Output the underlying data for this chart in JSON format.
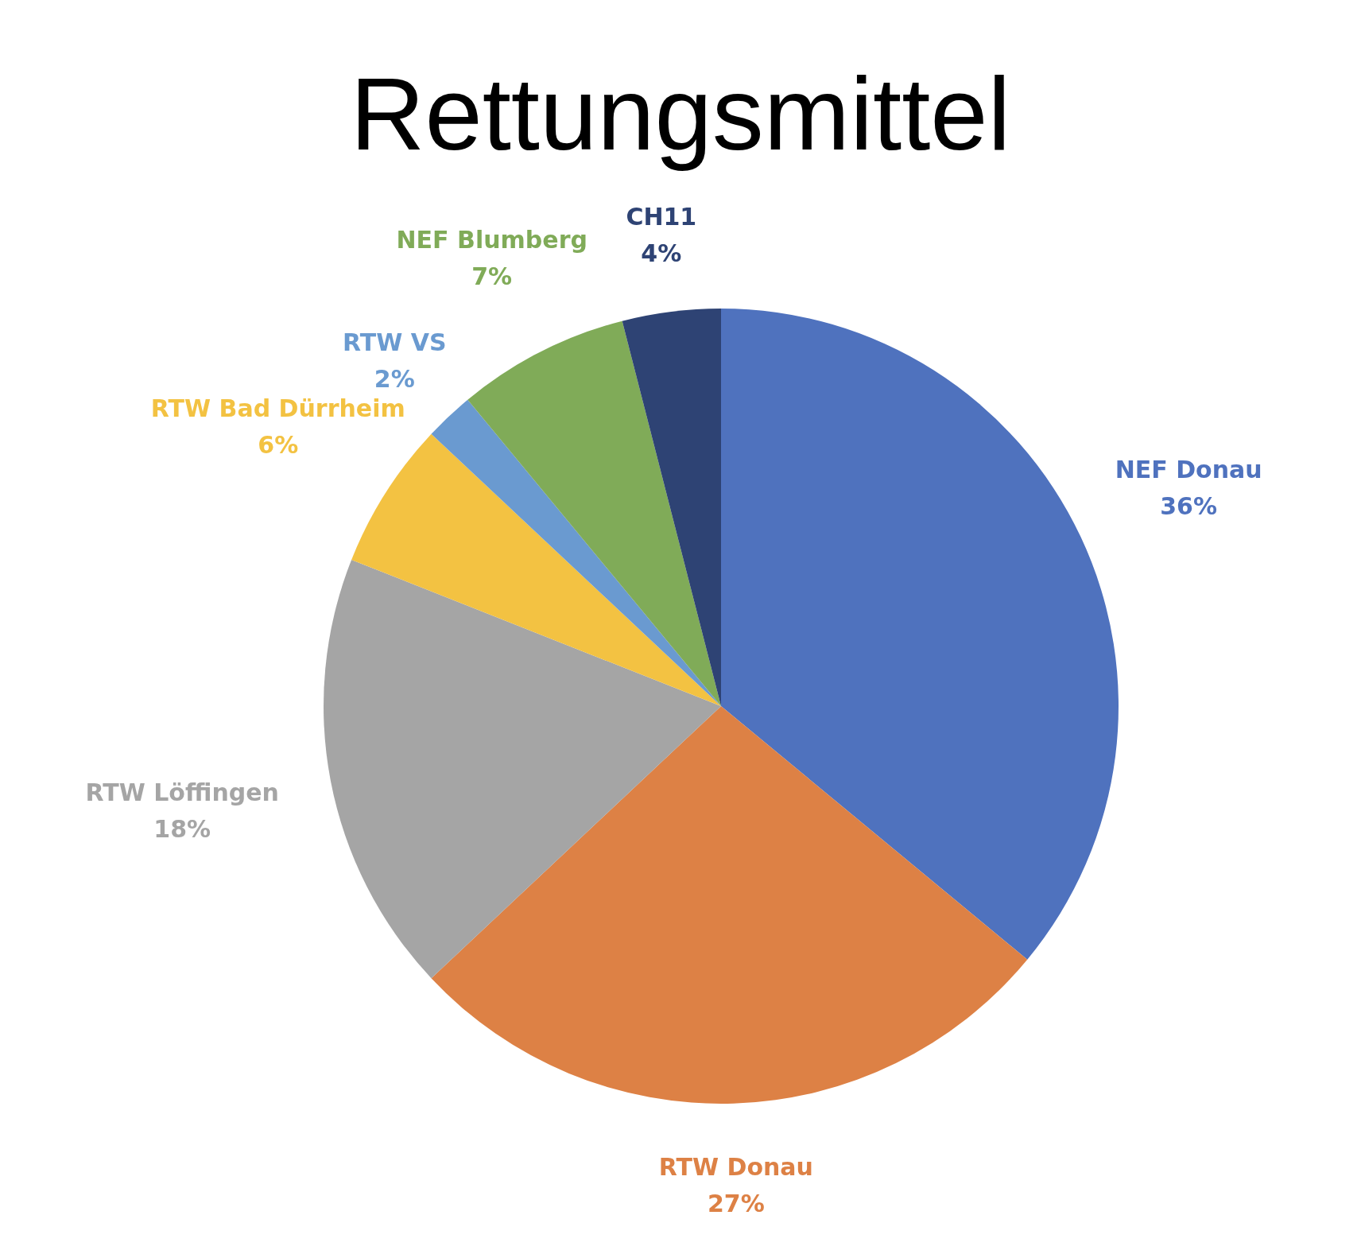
{
  "chart_data": {
    "type": "pie",
    "title": "Rettungsmittel",
    "categories": [
      "NEF Donau",
      "RTW Donau",
      "RTW Löffingen",
      "RTW Bad Dürrheim",
      "RTW VS",
      "NEF Blumberg",
      "CH11"
    ],
    "values": [
      36,
      27,
      18,
      6,
      2,
      7,
      4
    ],
    "colors": [
      "#4f72be",
      "#dd8145",
      "#a5a5a5",
      "#f3c242",
      "#6a9ad0",
      "#80ab58",
      "#2e4374"
    ],
    "value_labels": [
      "36%",
      "27%",
      "18%",
      "6%",
      "2%",
      "7%",
      "4%"
    ]
  }
}
